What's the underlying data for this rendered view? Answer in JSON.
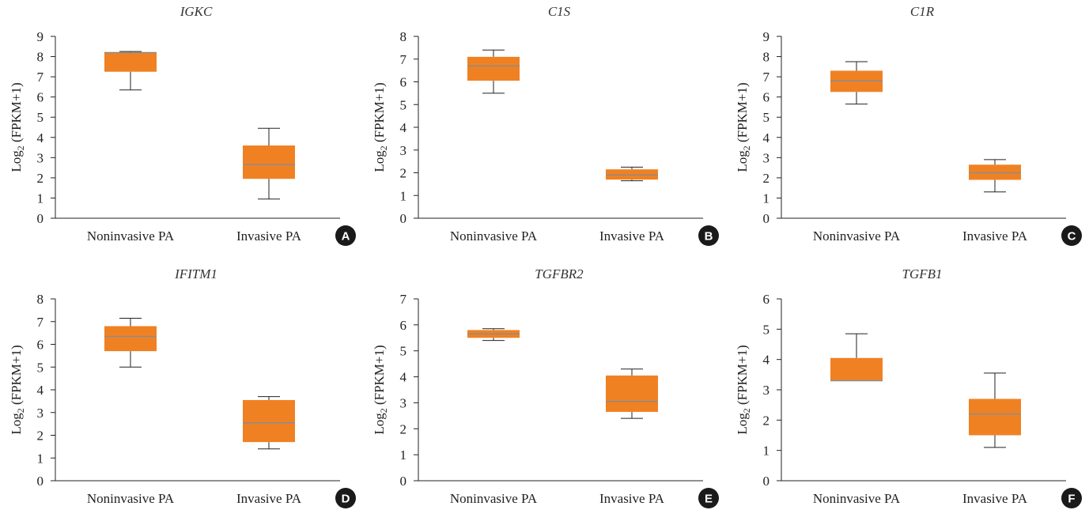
{
  "colors": {
    "box_fill": "#f08123",
    "median": "#8c8c8c",
    "whisker": "#222222",
    "axis": "#222222",
    "badge": "#1a1a1a"
  },
  "chart_data": [
    {
      "type": "box",
      "title": "IGKC",
      "ylabel": "Log2 (FPKM+1)",
      "badge": "A",
      "ylim": [
        0,
        9
      ],
      "ticks": [
        0,
        1,
        2,
        3,
        4,
        5,
        6,
        7,
        8,
        9
      ],
      "categories": [
        "Noninvasive PA",
        "Invasive PA"
      ],
      "boxes": [
        {
          "min": 6.35,
          "q1": 7.25,
          "median": 8.2,
          "q3": 8.2,
          "max": 8.25
        },
        {
          "min": 0.95,
          "q1": 1.95,
          "median": 2.65,
          "q3": 3.6,
          "max": 4.45
        }
      ]
    },
    {
      "type": "box",
      "title": "C1S",
      "ylabel": "Log2 (FPKM+1)",
      "badge": "B",
      "ylim": [
        0,
        8
      ],
      "ticks": [
        0,
        1,
        2,
        3,
        4,
        5,
        6,
        7,
        8
      ],
      "categories": [
        "Noninvasive PA",
        "Invasive PA"
      ],
      "boxes": [
        {
          "min": 5.5,
          "q1": 6.05,
          "median": 6.7,
          "q3": 7.1,
          "max": 7.4
        },
        {
          "min": 1.65,
          "q1": 1.7,
          "median": 1.9,
          "q3": 2.15,
          "max": 2.25
        }
      ]
    },
    {
      "type": "box",
      "title": "C1R",
      "ylabel": "Log2 (FPKM+1)",
      "badge": "C",
      "ylim": [
        0,
        9
      ],
      "ticks": [
        0,
        1,
        2,
        3,
        4,
        5,
        6,
        7,
        8,
        9
      ],
      "categories": [
        "Noninvasive PA",
        "Invasive PA"
      ],
      "boxes": [
        {
          "min": 5.65,
          "q1": 6.25,
          "median": 6.8,
          "q3": 7.3,
          "max": 7.75
        },
        {
          "min": 1.3,
          "q1": 1.9,
          "median": 2.25,
          "q3": 2.65,
          "max": 2.9
        }
      ]
    },
    {
      "type": "box",
      "title": "IFITM1",
      "ylabel": "Log2 (FPKM+1)",
      "badge": "D",
      "ylim": [
        0,
        8
      ],
      "ticks": [
        0,
        1,
        2,
        3,
        4,
        5,
        6,
        7,
        8
      ],
      "categories": [
        "Noninvasive PA",
        "Invasive PA"
      ],
      "boxes": [
        {
          "min": 5.0,
          "q1": 5.7,
          "median": 6.35,
          "q3": 6.8,
          "max": 7.15
        },
        {
          "min": 1.4,
          "q1": 1.7,
          "median": 2.55,
          "q3": 3.55,
          "max": 3.7
        }
      ]
    },
    {
      "type": "box",
      "title": "TGFBR2",
      "ylabel": "Log2 (FPKM+1)",
      "badge": "E",
      "ylim": [
        0,
        7
      ],
      "ticks": [
        0,
        1,
        2,
        3,
        4,
        5,
        6,
        7
      ],
      "categories": [
        "Noninvasive PA",
        "Invasive PA"
      ],
      "boxes": [
        {
          "min": 5.4,
          "q1": 5.5,
          "median": 5.65,
          "q3": 5.8,
          "max": 5.85
        },
        {
          "min": 2.4,
          "q1": 2.65,
          "median": 3.05,
          "q3": 4.05,
          "max": 4.3
        }
      ]
    },
    {
      "type": "box",
      "title": "TGFB1",
      "ylabel": "Log2 (FPKM+1)",
      "badge": "F",
      "ylim": [
        0,
        6
      ],
      "ticks": [
        0,
        1,
        2,
        3,
        4,
        5,
        6
      ],
      "categories": [
        "Noninvasive PA",
        "Invasive PA"
      ],
      "boxes": [
        {
          "min": 3.3,
          "q1": 3.3,
          "median": 3.3,
          "q3": 4.05,
          "max": 4.85
        },
        {
          "min": 1.1,
          "q1": 1.5,
          "median": 2.2,
          "q3": 2.7,
          "max": 3.55
        }
      ]
    }
  ]
}
